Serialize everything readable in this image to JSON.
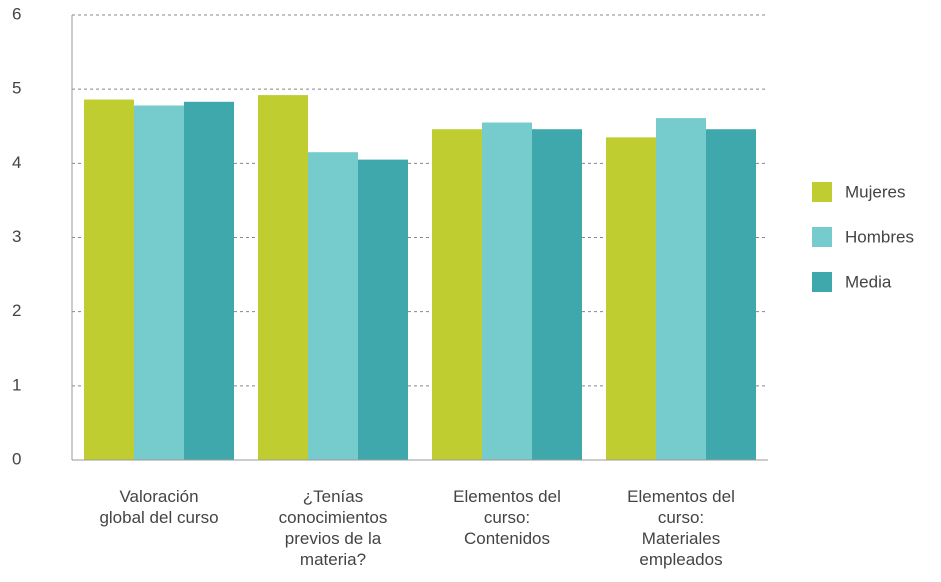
{
  "chart_data": {
    "type": "bar",
    "categories": [
      "Valoración global del curso",
      "¿Tenías conocimientos previos de la materia?",
      "Elementos del curso: Contenidos",
      "Elementos del curso: Materiales empleados"
    ],
    "series": [
      {
        "name": "Mujeres",
        "color": "#bfcd31",
        "values": [
          4.86,
          4.92,
          4.46,
          4.35
        ]
      },
      {
        "name": "Hombres",
        "color": "#76cbcc",
        "values": [
          4.78,
          4.15,
          4.55,
          4.61
        ]
      },
      {
        "name": "Media",
        "color": "#3fa8ad",
        "values": [
          4.83,
          4.05,
          4.46,
          4.46
        ]
      }
    ],
    "ylim": [
      0,
      6
    ],
    "yticks": [
      0,
      1,
      2,
      3,
      4,
      5,
      6
    ],
    "grid": true,
    "legend": "right"
  }
}
